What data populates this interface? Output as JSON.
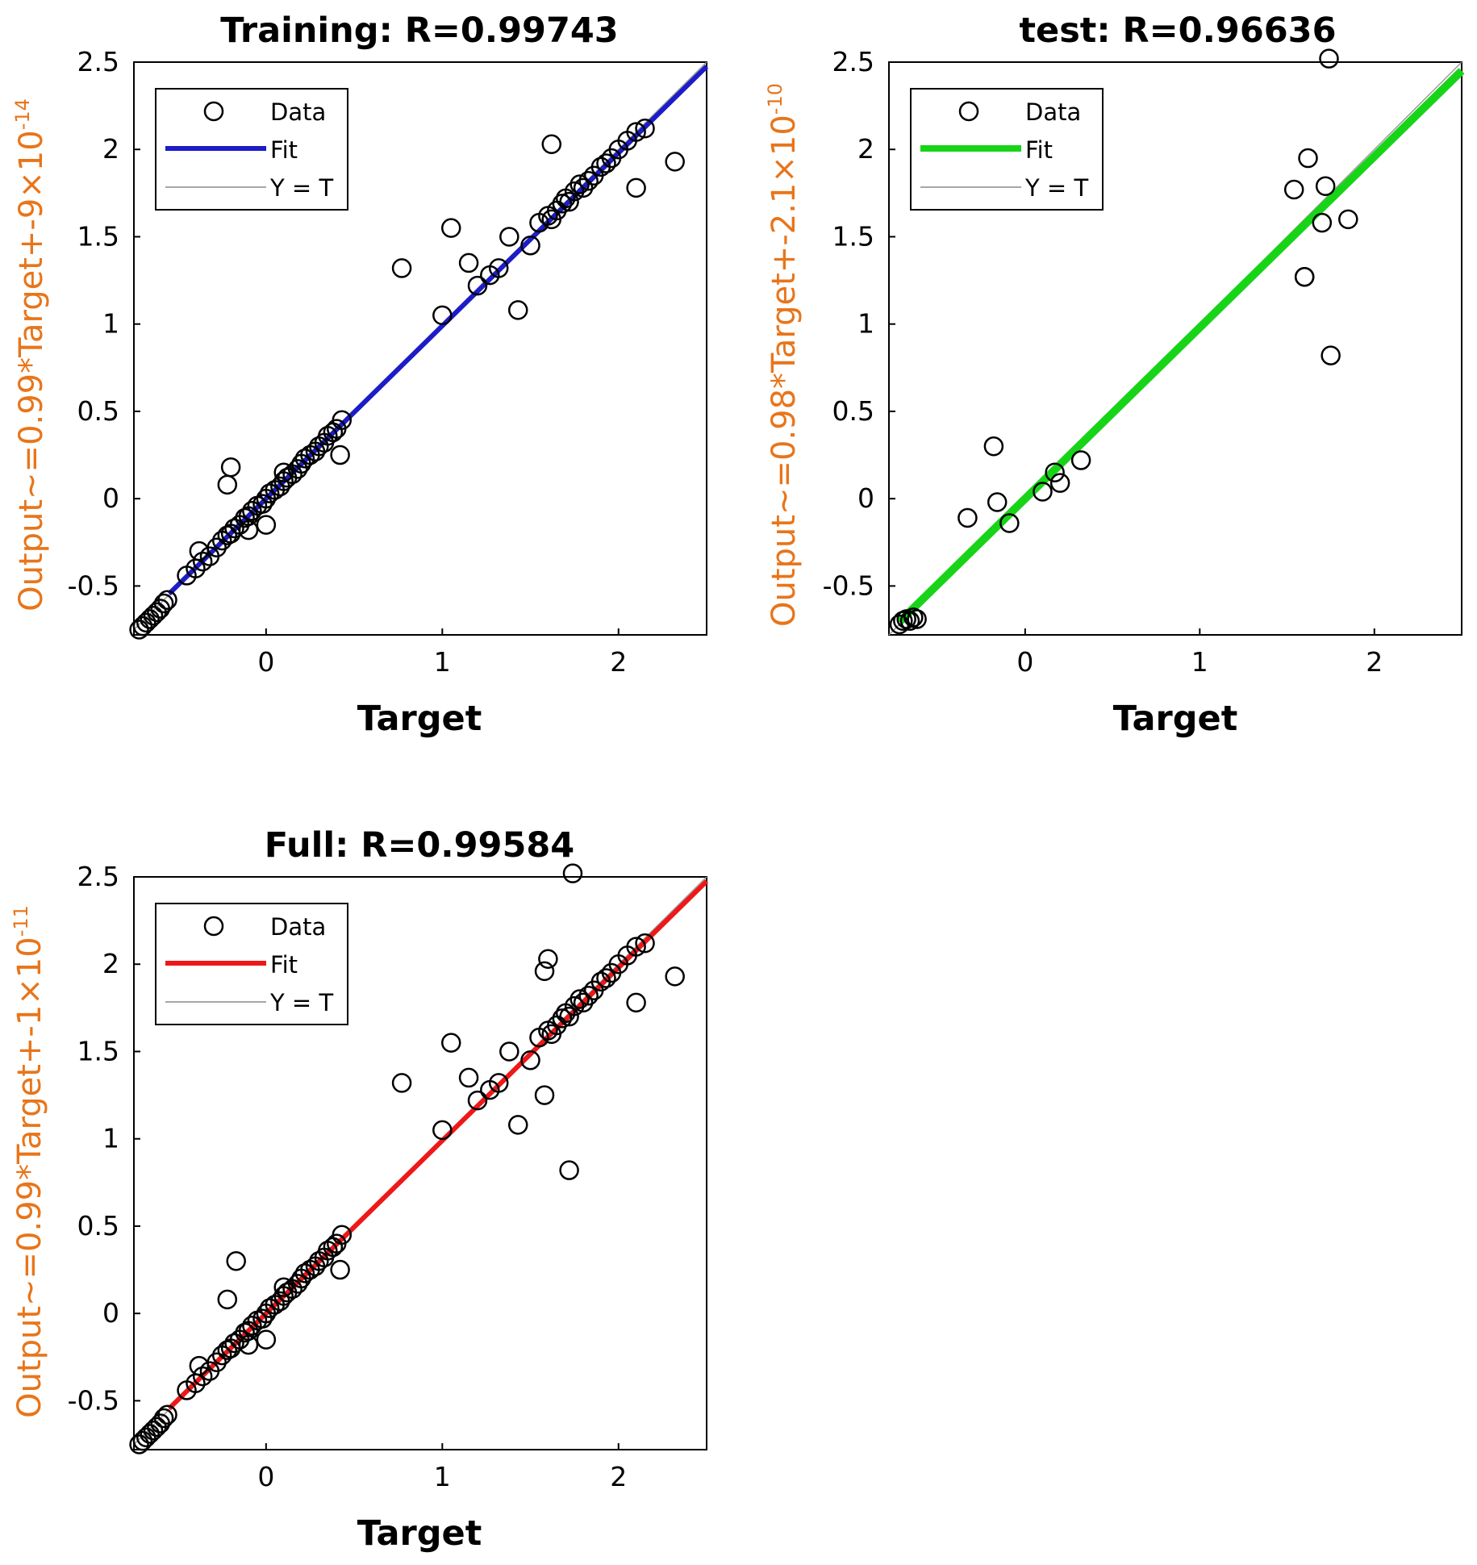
{
  "chart_data": [
    {
      "type": "scatter",
      "title": "Training: R=0.99743",
      "xlabel": "Target",
      "ylabel": {
        "prefix": "Output~=0.99*Target+-9",
        "times": "×",
        "base": "10",
        "exponent": "-14"
      },
      "xlim": [
        -0.75,
        2.5
      ],
      "ylim": [
        -0.78,
        2.5
      ],
      "x_ticks": [
        "0",
        "1",
        "2"
      ],
      "y_ticks": [
        "-0.5",
        "0",
        "0.5",
        "1",
        "1.5",
        "2",
        "2.5"
      ],
      "legend": {
        "position": "top-left",
        "entries": [
          "Data",
          "Fit",
          "Y = T"
        ]
      },
      "fit_color": "#1c1cc8",
      "fit": {
        "slope": 0.99,
        "intercept": 0
      },
      "series": [
        {
          "name": "Data",
          "marker": "circle-open",
          "x": [
            -0.72,
            -0.7,
            -0.68,
            -0.66,
            -0.64,
            -0.62,
            -0.6,
            -0.58,
            -0.56,
            -0.45,
            -0.4,
            -0.36,
            -0.32,
            -0.28,
            -0.25,
            -0.22,
            -0.2,
            -0.18,
            -0.15,
            -0.12,
            -0.1,
            -0.08,
            -0.05,
            -0.02,
            0.0,
            0.02,
            0.05,
            0.08,
            0.1,
            0.12,
            0.15,
            0.18,
            0.2,
            0.22,
            0.25,
            0.28,
            0.3,
            0.33,
            0.35,
            0.38,
            0.4,
            0.43,
            -0.22,
            -0.1,
            0.1,
            0.42,
            -0.38,
            -0.2,
            0.0,
            0.77,
            1.0,
            1.15,
            1.2,
            1.27,
            1.32,
            1.38,
            1.43,
            1.5,
            1.55,
            1.6,
            1.62,
            1.65,
            1.68,
            1.7,
            1.72,
            1.75,
            1.78,
            1.8,
            1.83,
            1.86,
            1.9,
            1.93,
            1.96,
            2.0,
            2.05,
            2.1,
            2.15,
            1.62,
            2.32,
            2.1,
            1.05
          ],
          "y": [
            -0.75,
            -0.73,
            -0.71,
            -0.69,
            -0.67,
            -0.65,
            -0.63,
            -0.6,
            -0.58,
            -0.44,
            -0.4,
            -0.36,
            -0.33,
            -0.28,
            -0.24,
            -0.21,
            -0.2,
            -0.17,
            -0.15,
            -0.11,
            -0.1,
            -0.07,
            -0.04,
            -0.03,
            0.0,
            0.03,
            0.05,
            0.07,
            0.1,
            0.12,
            0.14,
            0.17,
            0.2,
            0.23,
            0.25,
            0.27,
            0.3,
            0.32,
            0.36,
            0.38,
            0.4,
            0.45,
            0.08,
            -0.18,
            0.15,
            0.25,
            -0.3,
            0.18,
            -0.15,
            1.32,
            1.05,
            1.35,
            1.22,
            1.28,
            1.32,
            1.5,
            1.08,
            1.45,
            1.58,
            1.62,
            1.6,
            1.65,
            1.69,
            1.72,
            1.7,
            1.76,
            1.8,
            1.78,
            1.82,
            1.85,
            1.9,
            1.92,
            1.95,
            2.0,
            2.05,
            2.1,
            2.12,
            2.03,
            1.93,
            1.78,
            1.55
          ]
        }
      ]
    },
    {
      "type": "scatter",
      "title": "test: R=0.96636",
      "xlabel": "Target",
      "ylabel": {
        "prefix": "Output~=0.98*Target+-2.1",
        "times": "×",
        "base": "10",
        "exponent": "-10"
      },
      "xlim": [
        -0.78,
        2.5
      ],
      "ylim": [
        -0.78,
        2.5
      ],
      "x_ticks": [
        "0",
        "1",
        "2"
      ],
      "y_ticks": [
        "-0.5",
        "0",
        "0.5",
        "1",
        "1.5",
        "2",
        "2.5"
      ],
      "legend": {
        "position": "top-left",
        "entries": [
          "Data",
          "Fit",
          "Y = T"
        ]
      },
      "fit_color": "#18d418",
      "fit": {
        "slope": 0.98,
        "intercept": 0
      },
      "series": [
        {
          "name": "Data",
          "marker": "circle-open",
          "x": [
            -0.72,
            -0.7,
            -0.68,
            -0.66,
            -0.64,
            -0.62,
            -0.33,
            -0.18,
            -0.16,
            -0.09,
            0.1,
            0.17,
            0.2,
            0.32,
            1.54,
            1.62,
            1.6,
            1.7,
            1.72,
            1.75,
            1.85,
            1.6,
            1.74
          ],
          "y": [
            -0.72,
            -0.7,
            -0.69,
            -0.7,
            -0.68,
            -0.69,
            -0.11,
            0.3,
            -0.02,
            -0.14,
            0.04,
            0.15,
            0.09,
            0.22,
            1.77,
            1.95,
            1.27,
            1.58,
            1.79,
            0.82,
            1.6,
            1.27,
            2.52
          ]
        }
      ]
    },
    {
      "type": "scatter",
      "title": "Full: R=0.99584",
      "xlabel": "Target",
      "ylabel": {
        "prefix": "Output~=0.99*Target+-1",
        "times": "×",
        "base": "10",
        "exponent": "-11"
      },
      "xlim": [
        -0.75,
        2.5
      ],
      "ylim": [
        -0.78,
        2.5
      ],
      "x_ticks": [
        "0",
        "1",
        "2"
      ],
      "y_ticks": [
        "-0.5",
        "0",
        "0.5",
        "1",
        "1.5",
        "2",
        "2.5"
      ],
      "legend": {
        "position": "top-left",
        "entries": [
          "Data",
          "Fit",
          "Y = T"
        ]
      },
      "fit_color": "#ee1818",
      "fit": {
        "slope": 0.99,
        "intercept": 0
      },
      "series": [
        {
          "name": "Data",
          "marker": "circle-open",
          "x": [
            -0.72,
            -0.7,
            -0.68,
            -0.66,
            -0.64,
            -0.62,
            -0.6,
            -0.58,
            -0.56,
            -0.45,
            -0.4,
            -0.36,
            -0.32,
            -0.28,
            -0.25,
            -0.22,
            -0.2,
            -0.18,
            -0.15,
            -0.12,
            -0.1,
            -0.08,
            -0.05,
            -0.02,
            0.0,
            0.02,
            0.05,
            0.08,
            0.1,
            0.12,
            0.15,
            0.18,
            0.2,
            0.22,
            0.25,
            0.28,
            0.3,
            0.33,
            0.35,
            0.38,
            0.4,
            0.43,
            -0.22,
            -0.17,
            -0.1,
            0.1,
            0.42,
            -0.38,
            0.0,
            0.77,
            1.0,
            1.15,
            1.2,
            1.27,
            1.32,
            1.38,
            1.43,
            1.5,
            1.55,
            1.6,
            1.62,
            1.65,
            1.68,
            1.7,
            1.72,
            1.75,
            1.78,
            1.8,
            1.83,
            1.86,
            1.9,
            1.93,
            1.96,
            2.0,
            2.05,
            2.1,
            2.15,
            1.6,
            1.58,
            2.32,
            2.1,
            1.05,
            1.72,
            1.74,
            1.58
          ],
          "y": [
            -0.75,
            -0.73,
            -0.71,
            -0.69,
            -0.67,
            -0.65,
            -0.63,
            -0.6,
            -0.58,
            -0.44,
            -0.4,
            -0.36,
            -0.33,
            -0.28,
            -0.24,
            -0.21,
            -0.2,
            -0.17,
            -0.15,
            -0.11,
            -0.1,
            -0.07,
            -0.04,
            -0.03,
            0.0,
            0.03,
            0.05,
            0.07,
            0.1,
            0.12,
            0.14,
            0.17,
            0.2,
            0.23,
            0.25,
            0.27,
            0.3,
            0.32,
            0.36,
            0.38,
            0.4,
            0.45,
            0.08,
            0.3,
            -0.18,
            0.15,
            0.25,
            -0.3,
            -0.15,
            1.32,
            1.05,
            1.35,
            1.22,
            1.28,
            1.32,
            1.5,
            1.08,
            1.45,
            1.58,
            1.62,
            1.6,
            1.65,
            1.69,
            1.72,
            1.7,
            1.76,
            1.8,
            1.78,
            1.82,
            1.85,
            1.9,
            1.92,
            1.95,
            2.0,
            2.05,
            2.1,
            2.12,
            2.03,
            1.25,
            1.93,
            1.78,
            1.55,
            0.82,
            2.52,
            1.96
          ]
        }
      ]
    }
  ]
}
